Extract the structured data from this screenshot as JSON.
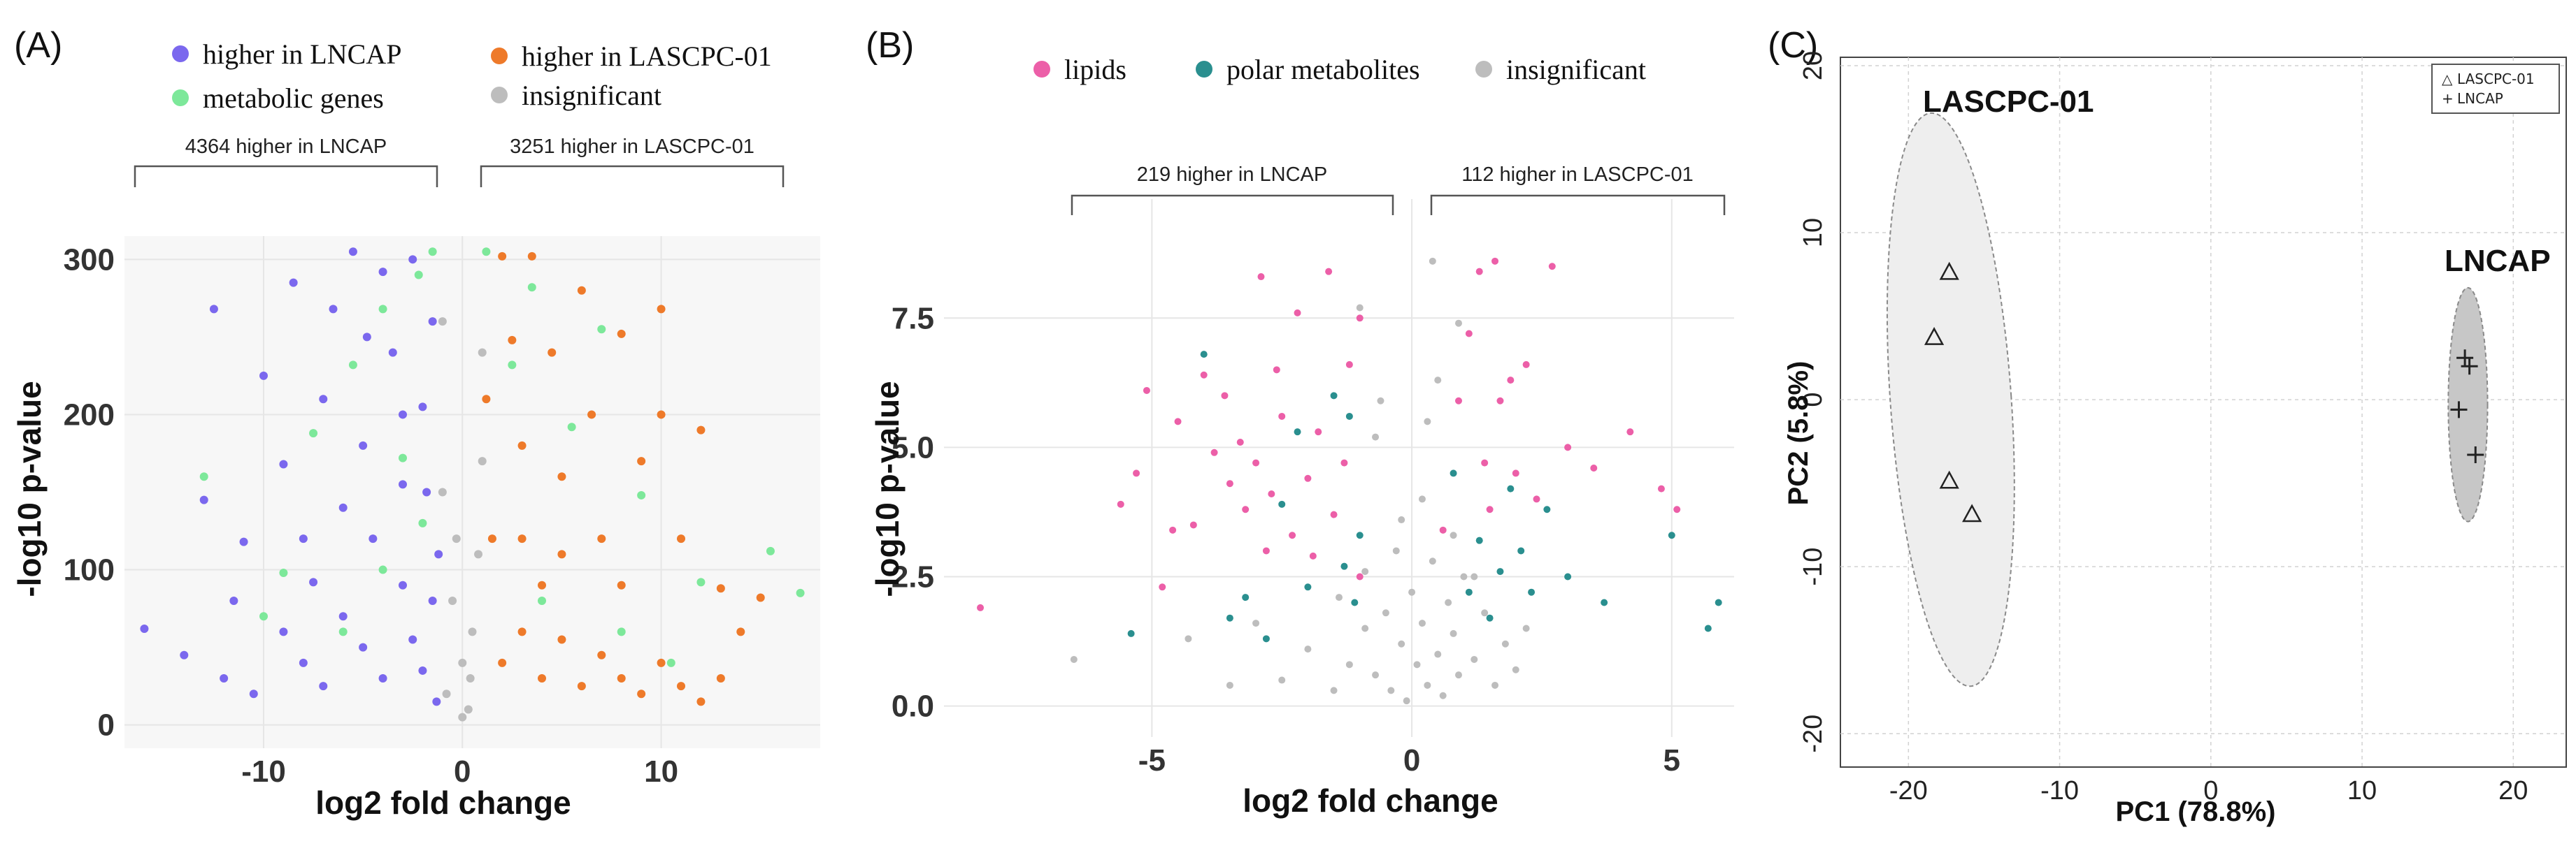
{
  "panels": {
    "a": {
      "label": "(A)",
      "legend": [
        {
          "text": "higher in LNCAP",
          "color": "#7b68ee"
        },
        {
          "text": "metabolic genes",
          "color": "#7de89a"
        },
        {
          "text": "higher in LASCPC-01",
          "color": "#ee7a2a"
        },
        {
          "text": "insignificant",
          "color": "#bdbdbd"
        }
      ],
      "brace_left": "4364 higher in LNCAP",
      "brace_right": "3251 higher in LASCPC-01"
    },
    "b": {
      "label": "(B)",
      "legend": [
        {
          "text": "lipids",
          "color": "#ec5fa8"
        },
        {
          "text": "polar metabolites",
          "color": "#2a8f8f"
        },
        {
          "text": "insignificant",
          "color": "#bdbdbd"
        }
      ],
      "brace_left": "219 higher in LNCAP",
      "brace_right": "112 higher in LASCPC-01"
    },
    "c": {
      "label": "(C)",
      "group_left": "LASCPC-01",
      "group_right": "LNCAP",
      "legend": [
        {
          "symbol": "△",
          "text": "LASCPC-01"
        },
        {
          "symbol": "+",
          "text": "LNCAP"
        }
      ]
    }
  },
  "chart_data": [
    {
      "type": "scatter",
      "title": "",
      "xlabel": "log2 fold change",
      "ylabel": "-log10 p-value",
      "xlim": [
        -17,
        18
      ],
      "ylim": [
        -15,
        315
      ],
      "xticks": [
        -10,
        0,
        10
      ],
      "yticks": [
        0,
        100,
        200,
        300
      ],
      "grid": true,
      "series": [
        {
          "name": "higher in LNCAP",
          "color": "#7b68ee",
          "points": [
            [
              -16,
              62
            ],
            [
              -13,
              145
            ],
            [
              -12.5,
              268
            ],
            [
              -11,
              118
            ],
            [
              -10,
              225
            ],
            [
              -9,
              168
            ],
            [
              -8.5,
              285
            ],
            [
              -7.5,
              92
            ],
            [
              -7,
              210
            ],
            [
              -6.5,
              268
            ],
            [
              -5.5,
              305
            ],
            [
              -5,
              180
            ],
            [
              -4.5,
              120
            ],
            [
              -4,
              292
            ],
            [
              -3.5,
              240
            ],
            [
              -3,
              155
            ],
            [
              -2.5,
              300
            ],
            [
              -2,
              205
            ],
            [
              -1.5,
              260
            ],
            [
              -1.2,
              110
            ],
            [
              -14,
              45
            ],
            [
              -12,
              30
            ],
            [
              -10.5,
              20
            ],
            [
              -9,
              60
            ],
            [
              -8,
              40
            ],
            [
              -7,
              25
            ],
            [
              -6,
              70
            ],
            [
              -5,
              50
            ],
            [
              -4,
              30
            ],
            [
              -3,
              90
            ],
            [
              -2.5,
              55
            ],
            [
              -2,
              35
            ],
            [
              -1.5,
              80
            ],
            [
              -1.3,
              15
            ],
            [
              -11.5,
              80
            ],
            [
              -6,
              140
            ],
            [
              -3,
              200
            ],
            [
              -1.8,
              150
            ],
            [
              -8,
              120
            ],
            [
              -4.8,
              250
            ]
          ]
        },
        {
          "name": "metabolic genes",
          "color": "#7de89a",
          "points": [
            [
              -13,
              160
            ],
            [
              -9,
              98
            ],
            [
              -7.5,
              188
            ],
            [
              -5.5,
              232
            ],
            [
              -4,
              268
            ],
            [
              -3,
              172
            ],
            [
              -2.2,
              290
            ],
            [
              -1.5,
              305
            ],
            [
              -10,
              70
            ],
            [
              -6,
              60
            ],
            [
              -4,
              100
            ],
            [
              -2,
              130
            ],
            [
              1.2,
              305
            ],
            [
              2.5,
              232
            ],
            [
              3.5,
              282
            ],
            [
              5.5,
              192
            ],
            [
              7,
              255
            ],
            [
              9,
              148
            ],
            [
              12,
              92
            ],
            [
              15.5,
              112
            ],
            [
              17,
              85
            ],
            [
              4,
              80
            ],
            [
              8,
              60
            ],
            [
              10.5,
              40
            ]
          ]
        },
        {
          "name": "higher in LASCPC-01",
          "color": "#ee7a2a",
          "points": [
            [
              1.2,
              210
            ],
            [
              1.5,
              120
            ],
            [
              2,
              302
            ],
            [
              2.5,
              248
            ],
            [
              3,
              180
            ],
            [
              3.5,
              302
            ],
            [
              4,
              90
            ],
            [
              4.5,
              240
            ],
            [
              5,
              160
            ],
            [
              6,
              280
            ],
            [
              6.5,
              200
            ],
            [
              7,
              120
            ],
            [
              8,
              252
            ],
            [
              9,
              170
            ],
            [
              10,
              268
            ],
            [
              11,
              120
            ],
            [
              12,
              190
            ],
            [
              13,
              88
            ],
            [
              14,
              60
            ],
            [
              15,
              82
            ],
            [
              2,
              40
            ],
            [
              3,
              60
            ],
            [
              4,
              30
            ],
            [
              5,
              55
            ],
            [
              6,
              25
            ],
            [
              7,
              45
            ],
            [
              8,
              30
            ],
            [
              9,
              20
            ],
            [
              10,
              40
            ],
            [
              11,
              25
            ],
            [
              12,
              15
            ],
            [
              13,
              30
            ],
            [
              3,
              120
            ],
            [
              5,
              110
            ],
            [
              8,
              90
            ],
            [
              10,
              200
            ]
          ]
        },
        {
          "name": "insignificant",
          "color": "#bdbdbd",
          "points": [
            [
              -1,
              150
            ],
            [
              -0.5,
              80
            ],
            [
              0,
              40
            ],
            [
              0.5,
              60
            ],
            [
              1,
              170
            ],
            [
              -0.8,
              20
            ],
            [
              0.3,
              10
            ],
            [
              0.8,
              110
            ],
            [
              -1,
              260
            ],
            [
              1,
              240
            ],
            [
              0,
              5
            ],
            [
              -0.3,
              120
            ],
            [
              0.4,
              30
            ]
          ]
        }
      ]
    },
    {
      "type": "scatter",
      "title": "",
      "xlabel": "log2 fold change",
      "ylabel": "-log10 p-value",
      "xlim": [
        -9,
        6.2
      ],
      "ylim": [
        -0.6,
        9.8
      ],
      "xticks": [
        -5,
        0,
        5
      ],
      "yticks": [
        0.0,
        2.5,
        5.0,
        7.5
      ],
      "yticklabels": [
        "0.0",
        "2.5",
        "5.0",
        "7.5"
      ],
      "grid": true,
      "series": [
        {
          "name": "lipids",
          "color": "#ec5fa8",
          "points": [
            [
              -8.3,
              1.9
            ],
            [
              -5.3,
              4.5
            ],
            [
              -5.1,
              6.1
            ],
            [
              -4.8,
              2.3
            ],
            [
              -4.5,
              5.5
            ],
            [
              -4.2,
              3.5
            ],
            [
              -4,
              6.4
            ],
            [
              -3.8,
              4.9
            ],
            [
              -3.5,
              4.3
            ],
            [
              -3.3,
              5.1
            ],
            [
              -3.2,
              3.8
            ],
            [
              -3,
              4.7
            ],
            [
              -2.9,
              8.3
            ],
            [
              -2.7,
              4.1
            ],
            [
              -2.5,
              5.6
            ],
            [
              -2.3,
              3.3
            ],
            [
              -2.2,
              7.6
            ],
            [
              -2,
              4.4
            ],
            [
              -1.9,
              2.9
            ],
            [
              -1.8,
              5.3
            ],
            [
              -1.6,
              8.4
            ],
            [
              -1.5,
              3.7
            ],
            [
              -1.3,
              4.7
            ],
            [
              -1.2,
              6.6
            ],
            [
              -1,
              7.5
            ],
            [
              -1,
              2.5
            ],
            [
              -5.6,
              3.9
            ],
            [
              -4.6,
              3.4
            ],
            [
              -3.6,
              6.0
            ],
            [
              -2.6,
              6.5
            ],
            [
              -2.8,
              3.0
            ],
            [
              0.6,
              3.4
            ],
            [
              0.9,
              5.9
            ],
            [
              1.1,
              7.2
            ],
            [
              1.3,
              8.4
            ],
            [
              1.4,
              4.7
            ],
            [
              1.5,
              3.8
            ],
            [
              1.7,
              5.9
            ],
            [
              1.9,
              6.3
            ],
            [
              2,
              4.5
            ],
            [
              2.2,
              6.6
            ],
            [
              2.4,
              4.0
            ],
            [
              2.7,
              8.5
            ],
            [
              3,
              5.0
            ],
            [
              3.5,
              4.6
            ],
            [
              4.2,
              5.3
            ],
            [
              4.8,
              4.2
            ],
            [
              5.1,
              3.8
            ],
            [
              1.6,
              8.6
            ]
          ]
        },
        {
          "name": "polar metabolites",
          "color": "#2a8f8f",
          "points": [
            [
              -5.4,
              1.4
            ],
            [
              -4,
              6.8
            ],
            [
              -3.5,
              1.7
            ],
            [
              -3.2,
              2.1
            ],
            [
              -2.8,
              1.3
            ],
            [
              -2.5,
              3.9
            ],
            [
              -2.2,
              5.3
            ],
            [
              -2,
              2.3
            ],
            [
              -1.5,
              6.0
            ],
            [
              -1.3,
              2.7
            ],
            [
              -1,
              3.3
            ],
            [
              -1.1,
              2.0
            ],
            [
              -1.2,
              5.6
            ],
            [
              0.8,
              4.5
            ],
            [
              1.1,
              2.2
            ],
            [
              1.3,
              3.2
            ],
            [
              1.5,
              1.7
            ],
            [
              1.7,
              2.6
            ],
            [
              1.9,
              4.2
            ],
            [
              2.1,
              3.0
            ],
            [
              2.3,
              2.2
            ],
            [
              2.6,
              3.8
            ],
            [
              3,
              2.5
            ],
            [
              3.7,
              2.0
            ],
            [
              5,
              3.3
            ],
            [
              5.7,
              1.5
            ],
            [
              5.9,
              2.0
            ]
          ]
        },
        {
          "name": "insignificant",
          "color": "#bdbdbd",
          "points": [
            [
              -6.5,
              0.9
            ],
            [
              -4.3,
              1.3
            ],
            [
              -3.5,
              0.4
            ],
            [
              -3,
              1.6
            ],
            [
              -2.5,
              0.5
            ],
            [
              -2,
              1.1
            ],
            [
              -1.5,
              0.3
            ],
            [
              -1.2,
              0.8
            ],
            [
              -0.9,
              2.6
            ],
            [
              -0.7,
              0.6
            ],
            [
              -0.5,
              1.8
            ],
            [
              -0.4,
              0.3
            ],
            [
              -0.3,
              3.0
            ],
            [
              -0.2,
              1.2
            ],
            [
              -0.1,
              0.1
            ],
            [
              0,
              2.2
            ],
            [
              0.1,
              0.8
            ],
            [
              0.2,
              1.6
            ],
            [
              0.3,
              0.4
            ],
            [
              0.4,
              2.8
            ],
            [
              0.5,
              1.0
            ],
            [
              0.6,
              0.2
            ],
            [
              0.7,
              2.0
            ],
            [
              0.8,
              1.4
            ],
            [
              0.9,
              0.6
            ],
            [
              1,
              2.5
            ],
            [
              1.2,
              0.9
            ],
            [
              1.4,
              1.8
            ],
            [
              1.6,
              0.4
            ],
            [
              1.8,
              1.2
            ],
            [
              2,
              0.7
            ],
            [
              2.2,
              1.5
            ],
            [
              0.5,
              6.3
            ],
            [
              0.9,
              7.4
            ],
            [
              0.4,
              8.6
            ],
            [
              -0.6,
              5.9
            ],
            [
              -1,
              7.7
            ],
            [
              -0.7,
              5.2
            ],
            [
              0.2,
              4.0
            ],
            [
              -0.2,
              3.6
            ],
            [
              0.8,
              3.3
            ],
            [
              -1.4,
              2.1
            ],
            [
              1.2,
              2.5
            ],
            [
              -0.9,
              1.5
            ],
            [
              0.3,
              5.5
            ]
          ]
        }
      ]
    },
    {
      "type": "scatter",
      "title": "",
      "xlabel": "PC1 (78.8%)",
      "ylabel": "PC2 (5.8%)",
      "xlim": [
        -24.5,
        23.5
      ],
      "ylim": [
        -22,
        20.5
      ],
      "xticks": [
        -20,
        -10,
        0,
        10,
        20
      ],
      "yticks": [
        -20,
        -10,
        0,
        10,
        20
      ],
      "grid": true,
      "legend_position": "top-right",
      "series": [
        {
          "name": "LASCPC-01",
          "marker": "triangle",
          "points": [
            [
              -17.3,
              7.6
            ],
            [
              -18.3,
              3.7
            ],
            [
              -17.3,
              -4.9
            ],
            [
              -15.8,
              -6.9
            ]
          ],
          "ellipse": {
            "cx": -17.2,
            "cy": 0,
            "rx": 4.0,
            "ry": 17.2,
            "fill": "#eeeeee"
          }
        },
        {
          "name": "LNCAP",
          "marker": "plus",
          "points": [
            [
              16.8,
              2.5
            ],
            [
              17.1,
              2.0
            ],
            [
              16.4,
              -0.6
            ],
            [
              17.5,
              -3.3
            ]
          ],
          "ellipse": {
            "cx": 17,
            "cy": -0.3,
            "rx": 1.3,
            "ry": 7.0,
            "fill": "#c7c7c7"
          }
        }
      ]
    }
  ]
}
